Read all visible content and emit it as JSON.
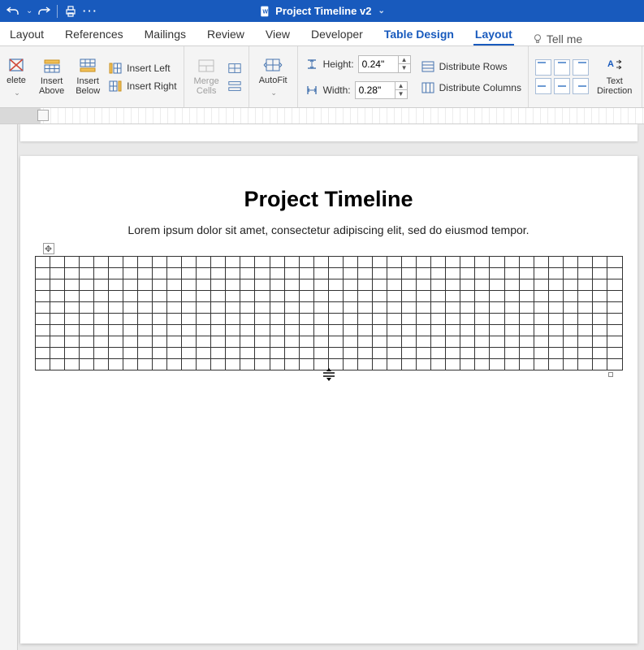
{
  "titlebar": {
    "doc_name": "Project Timeline v2"
  },
  "tabs": {
    "items": [
      "Layout",
      "References",
      "Mailings",
      "Review",
      "View",
      "Developer",
      "Table Design",
      "Layout"
    ],
    "active_index": 7,
    "contextual_index": 6,
    "tell_me": "Tell me"
  },
  "ribbon": {
    "delete": "elete",
    "insert_above": "Insert\nAbove",
    "insert_below": "Insert\nBelow",
    "insert_left": "Insert Left",
    "insert_right": "Insert Right",
    "merge_cells": "Merge\nCells",
    "autofit": "AutoFit",
    "height_label": "Height:",
    "height_value": "0.24\"",
    "width_label": "Width:",
    "width_value": "0.28\"",
    "distribute_rows": "Distribute Rows",
    "distribute_columns": "Distribute Columns",
    "text_direction": "Text\nDirection"
  },
  "document": {
    "title": "Project Timeline",
    "subtitle": "Lorem ipsum dolor sit amet, consectetur adipiscing elit, sed do eiusmod tempor.",
    "table": {
      "rows": 10,
      "cols": 40
    }
  },
  "colors": {
    "brand": "#185abd",
    "ribbon_bg": "#f4f4f4",
    "border": "#333333"
  }
}
